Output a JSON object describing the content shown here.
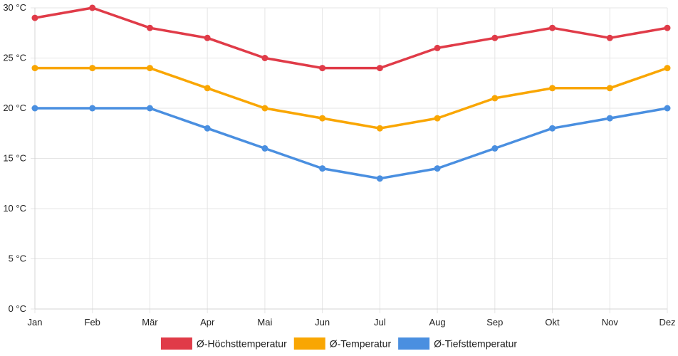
{
  "chart_data": {
    "type": "line",
    "categories": [
      "Jan",
      "Feb",
      "Mär",
      "Apr",
      "Mai",
      "Jun",
      "Jul",
      "Aug",
      "Sep",
      "Okt",
      "Nov",
      "Dez"
    ],
    "y_unit_suffix": " °C",
    "ylim": [
      0,
      30
    ],
    "y_ticks": [
      0,
      5,
      10,
      15,
      20,
      25,
      30
    ],
    "grid": true,
    "legend_position": "bottom",
    "series": [
      {
        "name": "Ø-Höchsttemperatur",
        "color": "#e03b48",
        "values": [
          29,
          30,
          28,
          27,
          25,
          24,
          24,
          26,
          27,
          28,
          27,
          28
        ]
      },
      {
        "name": "Ø-Temperatur",
        "color": "#f9a602",
        "values": [
          24,
          24,
          24,
          22,
          20,
          19,
          18,
          19,
          21,
          22,
          22,
          24
        ]
      },
      {
        "name": "Ø-Tiefsttemperatur",
        "color": "#4a8fe0",
        "values": [
          20,
          20,
          20,
          18,
          16,
          14,
          13,
          14,
          16,
          18,
          19,
          20
        ]
      }
    ]
  }
}
